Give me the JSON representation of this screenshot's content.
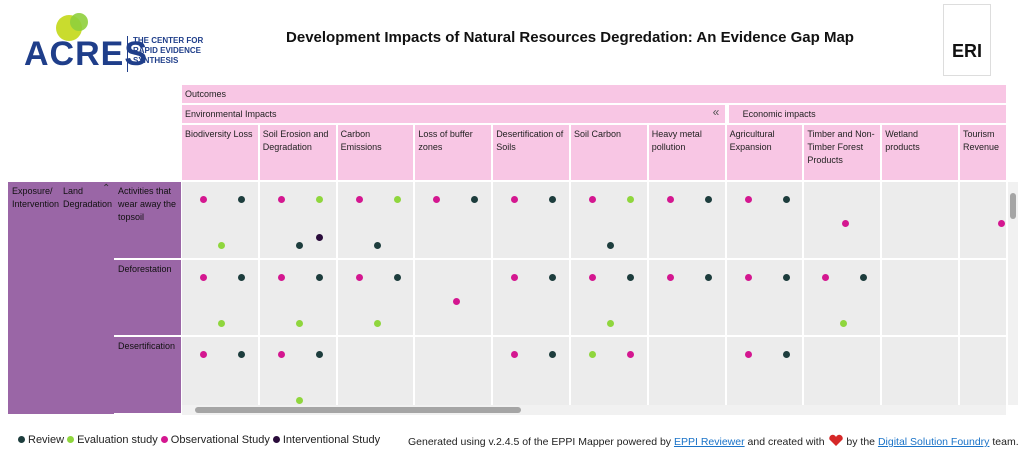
{
  "header": {
    "logo_name": "ACRES",
    "logo_tagline": [
      "THE CENTER FOR",
      "RAPID EVIDENCE",
      "SYNTHESIS"
    ],
    "title": "Development Impacts of Natural Resources Degredation: An Evidence Gap Map",
    "right_logo": "ERI"
  },
  "map": {
    "outcomes_label": "Outcomes",
    "groups": [
      {
        "label": "Environmental Impacts",
        "columns": [
          "Biodiversity Loss",
          "Soil Erosion and Degradation",
          "Carbon Emissions",
          "Loss of buffer zones",
          "Desertification of Soils",
          "Soil Carbon",
          "Heavy metal pollution"
        ]
      },
      {
        "label": "Economic impacts",
        "columns": [
          "Agricultural Expansion",
          "Timber and Non-Timber Forest Products",
          "Wetland products",
          "Tourism Revenue"
        ]
      }
    ],
    "exposure_label": "Exposure/ Intervention",
    "subgroup_label": "Land Degradation",
    "rows": [
      {
        "label": "Activities that wear away the topsoil",
        "cells": [
          [
            2,
            0,
            1
          ],
          [
            2,
            1,
            0,
            3
          ],
          [
            2,
            1,
            0
          ],
          [
            2,
            0
          ],
          [
            2,
            0
          ],
          [
            2,
            1,
            0
          ],
          [
            2,
            0
          ],
          [
            2,
            0
          ],
          [
            2
          ],
          [],
          [
            2
          ]
        ]
      },
      {
        "label": "Deforestation",
        "cells": [
          [
            2,
            0,
            1
          ],
          [
            2,
            0,
            1
          ],
          [
            2,
            0,
            1
          ],
          [
            2
          ],
          [
            2,
            0
          ],
          [
            2,
            0,
            1
          ],
          [
            2,
            0
          ],
          [
            2,
            0
          ],
          [
            2,
            0,
            1
          ],
          [],
          []
        ]
      },
      {
        "label": "Desertification",
        "cells": [
          [
            2,
            0
          ],
          [
            2,
            0,
            1
          ],
          [],
          [],
          [
            2,
            0
          ],
          [
            1,
            2
          ],
          [],
          [
            2,
            0
          ],
          [],
          [],
          []
        ]
      }
    ]
  },
  "legend": {
    "items": [
      "Review",
      "Evaluation study",
      "Observational Study",
      "Interventional Study"
    ],
    "colors": [
      "#1d3d3d",
      "#8fd63d",
      "#d41790",
      "#2a0c3b"
    ]
  },
  "footer": {
    "before": "Generated using v.2.4.5 of the EPPI Mapper powered by",
    "link1": "EPPI Reviewer",
    "middle": "and created with",
    "after_heart": "by the",
    "link2": "Digital Solution Foundry",
    "end": "team."
  }
}
